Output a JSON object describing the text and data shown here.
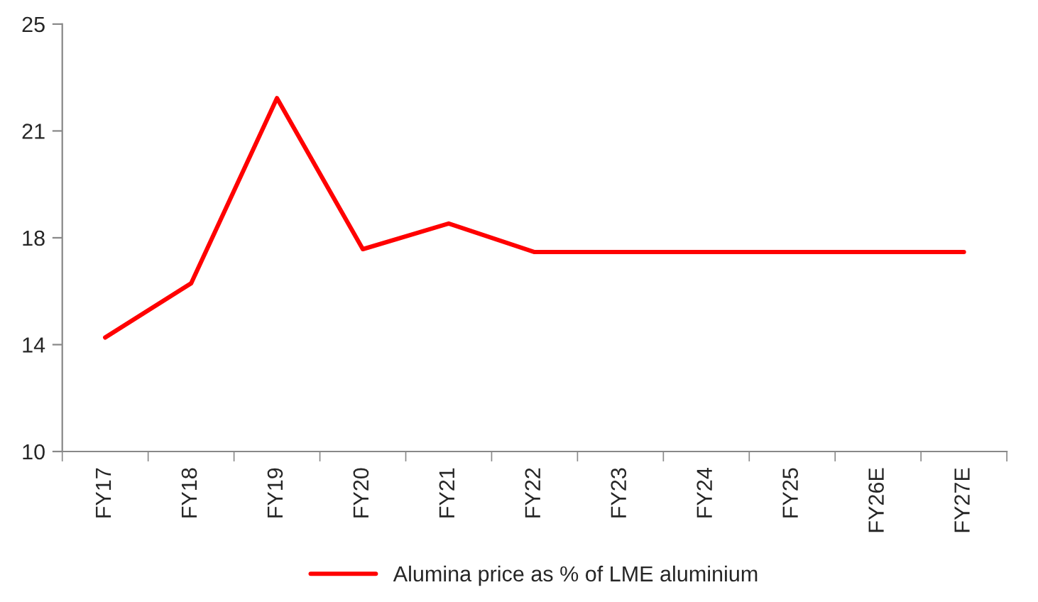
{
  "chart_data": {
    "type": "line",
    "categories": [
      "FY17",
      "FY18",
      "FY19",
      "FY20",
      "FY21",
      "FY22",
      "FY23",
      "FY24",
      "FY25",
      "FY26E",
      "FY27E"
    ],
    "series": [
      {
        "name": "Alumina price as % of LME aluminium",
        "color": "#ff0000",
        "values": [
          14.0,
          15.9,
          22.4,
          17.1,
          18.0,
          17.0,
          17.0,
          17.0,
          17.0,
          17.0,
          17.0
        ]
      }
    ],
    "ylim": [
      10,
      25
    ],
    "yticks": [
      10,
      {
        "value": 13.75,
        "label": "14"
      },
      {
        "value": 17.5,
        "label": "18"
      },
      {
        "value": 21.25,
        "label": "21"
      },
      25
    ],
    "grid": false,
    "legend": "bottom",
    "marker": "none",
    "line_style": "solid"
  }
}
